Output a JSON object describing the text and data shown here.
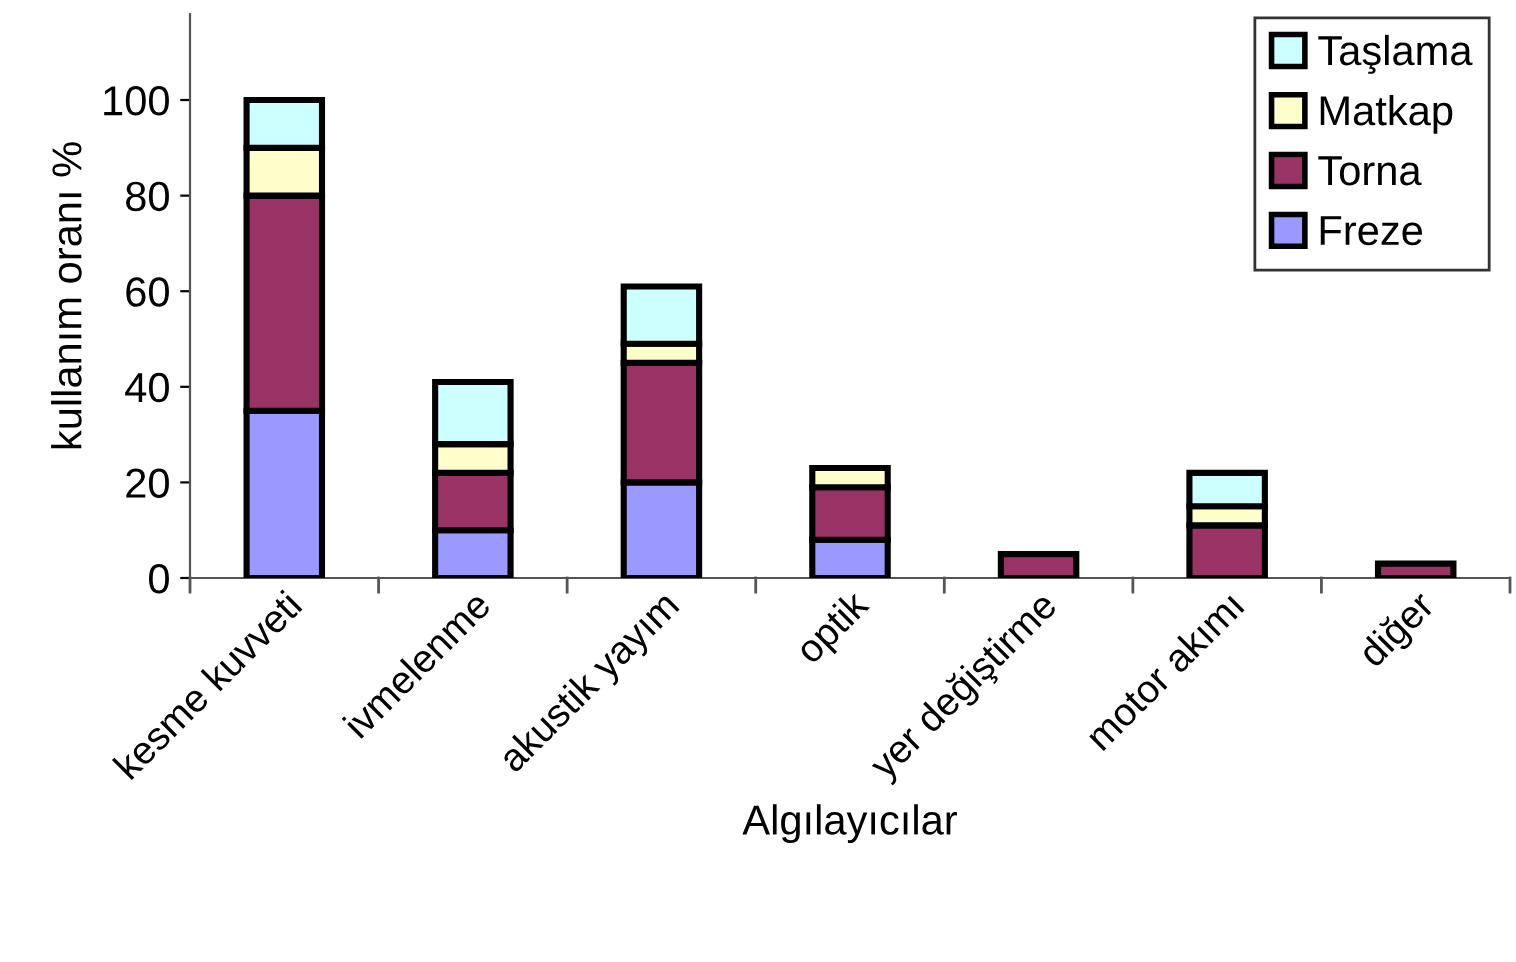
{
  "chart_data": {
    "type": "bar",
    "stacked": true,
    "xlabel": "Algılayıcılar",
    "ylabel": "kullanım oranı %",
    "categories": [
      "kesme kuvveti",
      "ivmelenme",
      "akustik yayım",
      "optik",
      "yer değiştirme",
      "motor akımı",
      "diğer"
    ],
    "series": [
      {
        "name": "Freze",
        "color": "#9999ff",
        "values": [
          35,
          10,
          20,
          8,
          0,
          0,
          0
        ]
      },
      {
        "name": "Torna",
        "color": "#993366",
        "values": [
          45,
          12,
          25,
          11,
          5,
          11,
          3
        ]
      },
      {
        "name": "Matkap",
        "color": "#ffffcc",
        "values": [
          10,
          6,
          4,
          4,
          0,
          4,
          0
        ]
      },
      {
        "name": "Taşlama",
        "color": "#ccffff",
        "values": [
          10,
          13,
          12,
          0,
          0,
          7,
          0
        ]
      }
    ],
    "ylim": [
      0,
      118
    ],
    "yticks": [
      0,
      20,
      40,
      60,
      80,
      100
    ],
    "grid": false,
    "legend": "top right"
  }
}
